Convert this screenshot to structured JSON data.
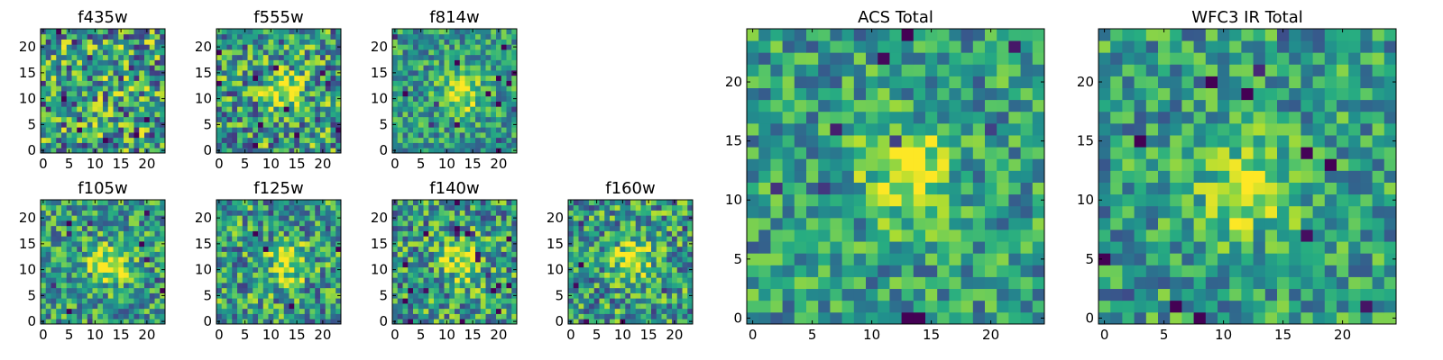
{
  "chart_data": [
    {
      "type": "heatmap",
      "title": "f435w",
      "colormap": "viridis",
      "size": 24,
      "x_ticks": [
        "0",
        "5",
        "10",
        "15",
        "20"
      ],
      "y_ticks": [
        "0",
        "5",
        "10",
        "15",
        "20"
      ],
      "xlim": [
        -0.5,
        23.5
      ],
      "ylim": [
        -0.5,
        23.5
      ],
      "source_peak": null,
      "noise": 0.55,
      "seed": 11
    },
    {
      "type": "heatmap",
      "title": "f555w",
      "colormap": "viridis",
      "size": 24,
      "x_ticks": [
        "0",
        "5",
        "10",
        "15",
        "20"
      ],
      "y_ticks": [
        "0",
        "5",
        "10",
        "15",
        "20"
      ],
      "xlim": [
        -0.5,
        23.5
      ],
      "ylim": [
        -0.5,
        23.5
      ],
      "source_peak": [
        13,
        11
      ],
      "noise": 0.5,
      "seed": 23
    },
    {
      "type": "heatmap",
      "title": "f814w",
      "colormap": "viridis",
      "size": 24,
      "x_ticks": [
        "0",
        "5",
        "10",
        "15",
        "20"
      ],
      "y_ticks": [
        "0",
        "5",
        "10",
        "15",
        "20"
      ],
      "xlim": [
        -0.5,
        23.5
      ],
      "ylim": [
        -0.5,
        23.5
      ],
      "source_peak": [
        13,
        11
      ],
      "noise": 0.35,
      "seed": 37
    },
    {
      "type": "heatmap",
      "title": "f105w",
      "colormap": "viridis",
      "size": 24,
      "x_ticks": [
        "0",
        "5",
        "10",
        "15",
        "20"
      ],
      "y_ticks": [
        "0",
        "5",
        "10",
        "15",
        "20"
      ],
      "xlim": [
        -0.5,
        23.5
      ],
      "ylim": [
        -0.5,
        23.5
      ],
      "source_peak": [
        13,
        11
      ],
      "noise": 0.4,
      "seed": 41
    },
    {
      "type": "heatmap",
      "title": "f125w",
      "colormap": "viridis",
      "size": 24,
      "x_ticks": [
        "0",
        "5",
        "10",
        "15",
        "20"
      ],
      "y_ticks": [
        "0",
        "5",
        "10",
        "15",
        "20"
      ],
      "xlim": [
        -0.5,
        23.5
      ],
      "ylim": [
        -0.5,
        23.5
      ],
      "source_peak": [
        13,
        11
      ],
      "noise": 0.45,
      "seed": 53
    },
    {
      "type": "heatmap",
      "title": "f140w",
      "colormap": "viridis",
      "size": 24,
      "x_ticks": [
        "0",
        "5",
        "10",
        "15",
        "20"
      ],
      "y_ticks": [
        "0",
        "5",
        "10",
        "15",
        "20"
      ],
      "xlim": [
        -0.5,
        23.5
      ],
      "ylim": [
        -0.5,
        23.5
      ],
      "source_peak": [
        13,
        11
      ],
      "noise": 0.45,
      "seed": 67
    },
    {
      "type": "heatmap",
      "title": "f160w",
      "colormap": "viridis",
      "size": 24,
      "x_ticks": [
        "0",
        "5",
        "10",
        "15",
        "20"
      ],
      "y_ticks": [
        "0",
        "5",
        "10",
        "15",
        "20"
      ],
      "xlim": [
        -0.5,
        23.5
      ],
      "ylim": [
        -0.5,
        23.5
      ],
      "source_peak": [
        12,
        12
      ],
      "noise": 0.45,
      "seed": 79
    },
    {
      "type": "heatmap",
      "title": "ACS Total",
      "colormap": "viridis",
      "size": 25,
      "x_ticks": [
        "0",
        "5",
        "10",
        "15",
        "20"
      ],
      "y_ticks": [
        "0",
        "5",
        "10",
        "15",
        "20"
      ],
      "xlim": [
        -0.5,
        24.5
      ],
      "ylim": [
        -0.5,
        24.5
      ],
      "source_peak": [
        13,
        12
      ],
      "noise": 0.35,
      "seed": 97
    },
    {
      "type": "heatmap",
      "title": "WFC3 IR Total",
      "colormap": "viridis",
      "size": 25,
      "x_ticks": [
        "0",
        "5",
        "10",
        "15",
        "20"
      ],
      "y_ticks": [
        "0",
        "5",
        "10",
        "15",
        "20"
      ],
      "xlim": [
        -0.5,
        24.5
      ],
      "ylim": [
        -0.5,
        24.5
      ],
      "source_peak": [
        12,
        11
      ],
      "noise": 0.35,
      "seed": 113
    }
  ]
}
